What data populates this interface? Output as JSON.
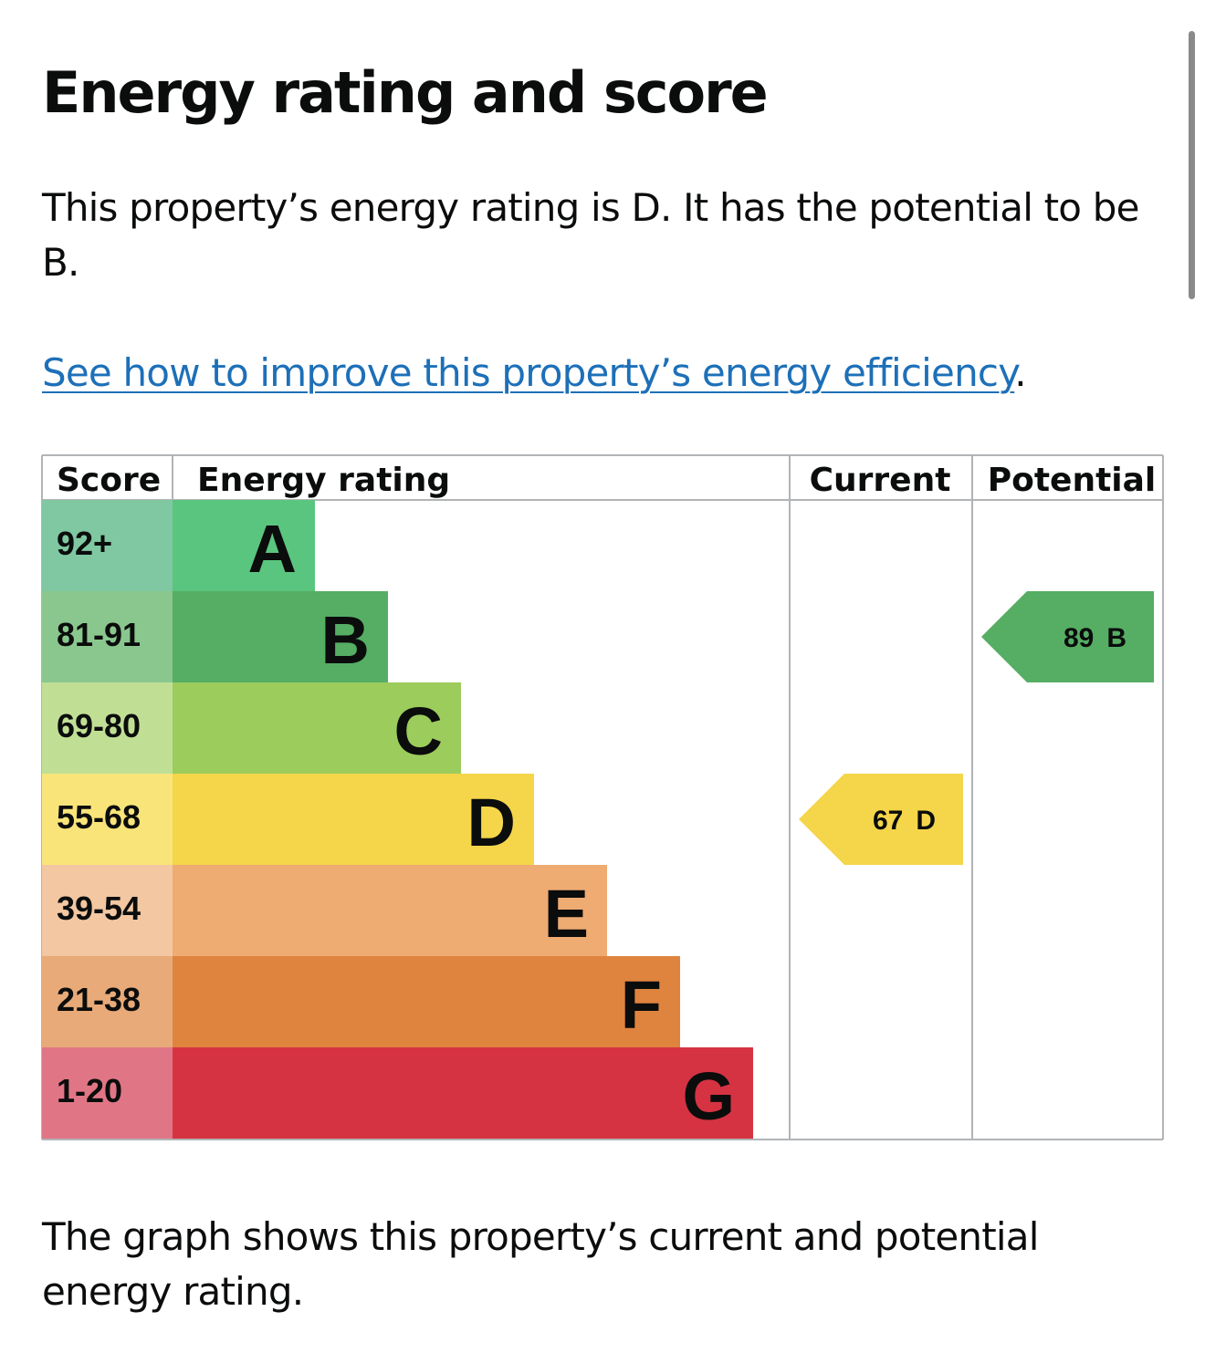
{
  "page": {
    "title": "Energy rating and score",
    "summary": "This property’s energy rating is D. It has the potential to be B.",
    "improve_link": "See how to improve this property’s energy efficiency",
    "improve_suffix": ".",
    "footer": "The graph shows this property’s current and potential energy rating."
  },
  "chart_data": {
    "type": "table",
    "columns": {
      "score": "Score",
      "rating": "Energy rating",
      "current": "Current",
      "potential": "Potential"
    },
    "bands": [
      {
        "letter": "A",
        "range": "92+",
        "color": "#5ac57f",
        "score_color": "#7fc8a2"
      },
      {
        "letter": "B",
        "range": "81-91",
        "color": "#55ae63",
        "score_color": "#8ac78e"
      },
      {
        "letter": "C",
        "range": "69-80",
        "color": "#9ccc5c",
        "score_color": "#c0df95"
      },
      {
        "letter": "D",
        "range": "55-68",
        "color": "#f5d54a",
        "score_color": "#f9e47a"
      },
      {
        "letter": "E",
        "range": "39-54",
        "color": "#eeab72",
        "score_color": "#f2c7a1"
      },
      {
        "letter": "F",
        "range": "21-38",
        "color": "#df843e",
        "score_color": "#e8aa78"
      },
      {
        "letter": "G",
        "range": "1-20",
        "color": "#d53342",
        "score_color": "#e07685"
      }
    ],
    "current": {
      "score": "67",
      "band": "D",
      "color": "#f5d54a"
    },
    "potential": {
      "score": "89",
      "band": "B",
      "color": "#55ae63"
    }
  }
}
